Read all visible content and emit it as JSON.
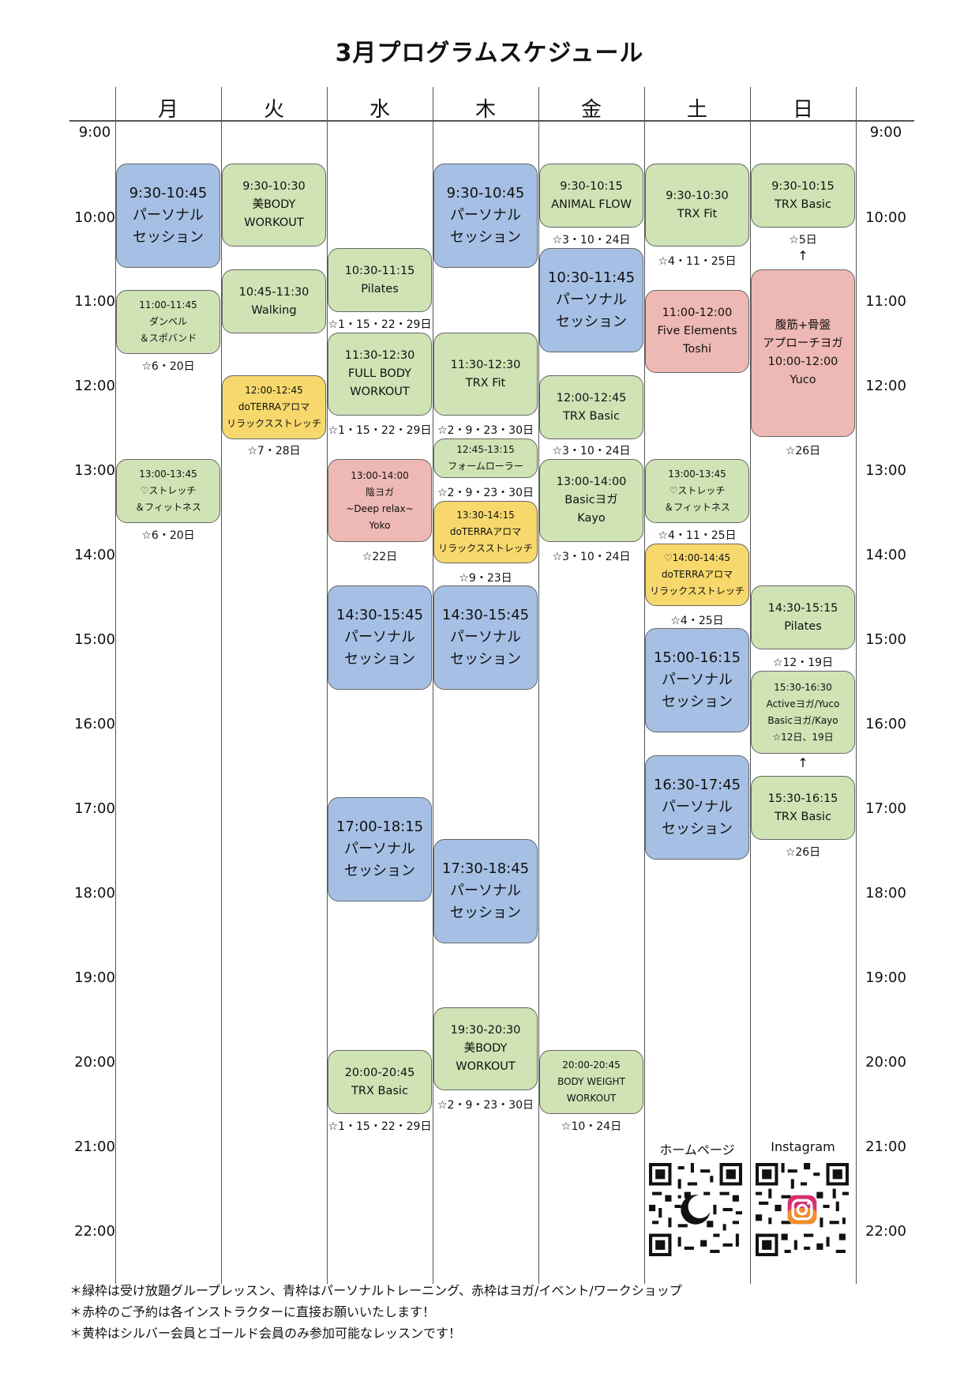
{
  "title": "3月プログラムスケジュール",
  "days": [
    "月",
    "火",
    "水",
    "木",
    "金",
    "土",
    "日"
  ],
  "times": [
    "9:00",
    "10:00",
    "11:00",
    "12:00",
    "13:00",
    "14:00",
    "15:00",
    "16:00",
    "17:00",
    "18:00",
    "19:00",
    "20:00",
    "21:00",
    "22:00"
  ],
  "colors": {
    "green": "#cfe3b5",
    "blue": "#a6c0e5",
    "red": "#eeb8b4",
    "yellow": "#f6d86c"
  },
  "events": [
    {
      "id": "mon-personal-0930",
      "day": "月",
      "color": "blue",
      "text": "9:30-10:45\nパーソナル\nセッション"
    },
    {
      "id": "mon-dumbbell",
      "day": "月",
      "color": "green",
      "text": "11:00-11:45\nダンベル\n＆スポバンド"
    },
    {
      "id": "mon-stretch",
      "day": "月",
      "color": "green",
      "text": "13:00-13:45\n♡ストレッチ\n＆フィットネス"
    },
    {
      "id": "tue-bibody",
      "day": "火",
      "color": "green",
      "text": "9:30-10:30\n美BODY\nWORKOUT"
    },
    {
      "id": "tue-walking",
      "day": "火",
      "color": "green",
      "text": "10:45-11:30\nWalking"
    },
    {
      "id": "tue-doterra",
      "day": "火",
      "color": "yellow",
      "text": "12:00-12:45\ndoTERRAアロマ\nリラックスストレッチ"
    },
    {
      "id": "wed-pilates",
      "day": "水",
      "color": "green",
      "text": "10:30-11:15\nPilates"
    },
    {
      "id": "wed-fullbody",
      "day": "水",
      "color": "green",
      "text": "11:30-12:30\nFULL BODY\nWORKOUT"
    },
    {
      "id": "wed-inyoga",
      "day": "水",
      "color": "red",
      "text": "13:00-14:00\n陰ヨガ\n~Deep relax~\nYoko"
    },
    {
      "id": "wed-personal-1430",
      "day": "水",
      "color": "blue",
      "text": "14:30-15:45\nパーソナル\nセッション"
    },
    {
      "id": "wed-personal-1700",
      "day": "水",
      "color": "blue",
      "text": "17:00-18:15\nパーソナル\nセッション"
    },
    {
      "id": "wed-trx",
      "day": "水",
      "color": "green",
      "text": "20:00-20:45\nTRX Basic"
    },
    {
      "id": "thu-personal-0930",
      "day": "木",
      "color": "blue",
      "text": "9:30-10:45\nパーソナル\nセッション"
    },
    {
      "id": "thu-trxfit",
      "day": "木",
      "color": "green",
      "text": "11:30-12:30\nTRX Fit"
    },
    {
      "id": "thu-foamroller",
      "day": "木",
      "color": "green",
      "text": "12:45-13:15\nフォームローラー"
    },
    {
      "id": "thu-doterra",
      "day": "木",
      "color": "yellow",
      "text": "13:30-14:15\ndoTERRAアロマ\nリラックスストレッチ"
    },
    {
      "id": "thu-personal-1430",
      "day": "木",
      "color": "blue",
      "text": "14:30-15:45\nパーソナル\nセッション"
    },
    {
      "id": "thu-personal-1730",
      "day": "木",
      "color": "blue",
      "text": "17:30-18:45\nパーソナル\nセッション"
    },
    {
      "id": "thu-bibody",
      "day": "木",
      "color": "green",
      "text": "19:30-20:30\n美BODY\nWORKOUT"
    },
    {
      "id": "fri-animalflow",
      "day": "金",
      "color": "green",
      "text": "9:30-10:15\nANIMAL FLOW"
    },
    {
      "id": "fri-personal-1030",
      "day": "金",
      "color": "blue",
      "text": "10:30-11:45\nパーソナル\nセッション"
    },
    {
      "id": "fri-trxbasic",
      "day": "金",
      "color": "green",
      "text": "12:00-12:45\nTRX Basic"
    },
    {
      "id": "fri-basicyoga",
      "day": "金",
      "color": "green",
      "text": "13:00-14:00\nBasicヨガ\nKayo"
    },
    {
      "id": "fri-bodyweight",
      "day": "金",
      "color": "green",
      "text": "20:00-20:45\nBODY WEIGHT\nWORKOUT"
    },
    {
      "id": "sat-trxfit",
      "day": "土",
      "color": "green",
      "text": "9:30-10:30\nTRX Fit"
    },
    {
      "id": "sat-fiveelements",
      "day": "土",
      "color": "red",
      "text": "11:00-12:00\nFive Elements\nToshi"
    },
    {
      "id": "sat-stretch",
      "day": "土",
      "color": "green",
      "text": "13:00-13:45\n♡ストレッチ\n＆フィットネス"
    },
    {
      "id": "sat-doterra",
      "day": "土",
      "color": "yellow",
      "text": "♡14:00-14:45\ndoTERRAアロマ\nリラックスストレッチ"
    },
    {
      "id": "sat-personal-1500",
      "day": "土",
      "color": "blue",
      "text": "15:00-16:15\nパーソナル\nセッション"
    },
    {
      "id": "sat-personal-1630",
      "day": "土",
      "color": "blue",
      "text": "16:30-17:45\nパーソナル\nセッション"
    },
    {
      "id": "sun-trxbasic",
      "day": "日",
      "color": "green",
      "text": "9:30-10:15\nTRX Basic"
    },
    {
      "id": "sun-yoga",
      "day": "日",
      "color": "red",
      "text": "腹筋+骨盤\nアプローチヨガ\n10:00-12:00\nYuco"
    },
    {
      "id": "sun-pilates",
      "day": "日",
      "color": "green",
      "text": "14:30-15:15\nPilates"
    },
    {
      "id": "sun-activeyoga",
      "day": "日",
      "color": "green",
      "text": "15:30-16:30\nActiveヨガ/Yuco\nBasicヨガ/Kayo\n☆12日、19日"
    },
    {
      "id": "sun-trxbasic2",
      "day": "日",
      "color": "green",
      "text": "15:30-16:15\nTRX Basic"
    }
  ],
  "notes": [
    {
      "id": "mon-1",
      "day": "月",
      "text": "☆6・20日"
    },
    {
      "id": "mon-2",
      "day": "月",
      "text": "☆6・20日"
    },
    {
      "id": "tue-1",
      "day": "火",
      "text": "☆7・28日"
    },
    {
      "id": "wed-1",
      "day": "水",
      "text": "☆1・15・22・29日"
    },
    {
      "id": "wed-2",
      "day": "水",
      "text": "☆1・15・22・29日"
    },
    {
      "id": "wed-3",
      "day": "水",
      "text": "☆22日"
    },
    {
      "id": "wed-4",
      "day": "水",
      "text": "☆1・15・22・29日"
    },
    {
      "id": "thu-1",
      "day": "木",
      "text": "☆2・9・23・30日"
    },
    {
      "id": "thu-2",
      "day": "木",
      "text": "☆2・9・23・30日"
    },
    {
      "id": "thu-3",
      "day": "木",
      "text": "☆9・23日"
    },
    {
      "id": "thu-4",
      "day": "木",
      "text": "☆2・9・23・30日"
    },
    {
      "id": "fri-1",
      "day": "金",
      "text": "☆3・10・24日"
    },
    {
      "id": "fri-2",
      "day": "金",
      "text": "☆3・10・24日"
    },
    {
      "id": "fri-3",
      "day": "金",
      "text": "☆3・10・24日"
    },
    {
      "id": "fri-4",
      "day": "金",
      "text": "☆10・24日"
    },
    {
      "id": "sat-1",
      "day": "土",
      "text": "☆4・11・25日"
    },
    {
      "id": "sat-2",
      "day": "土",
      "text": "☆4・11・25日"
    },
    {
      "id": "sat-3",
      "day": "土",
      "text": "☆4・25日"
    },
    {
      "id": "sun-1",
      "day": "日",
      "text": "☆5日"
    },
    {
      "id": "sun-2",
      "day": "日",
      "text": "☆26日"
    },
    {
      "id": "sun-3",
      "day": "日",
      "text": "☆12・19日"
    },
    {
      "id": "sun-4",
      "day": "日",
      "text": "☆26日"
    }
  ],
  "arrows": [
    "↑",
    "↑"
  ],
  "links": {
    "homepage": "ホームページ",
    "instagram": "Instagram"
  },
  "footnotes": [
    "＊緑枠は受け放題グループレッスン、青枠はパーソナルトレーニング、赤枠はヨガ/イベント/ワークショップ",
    "＊赤枠のご予約は各インストラクターに直接お願いいたします！",
    "＊黄枠はシルバー会員とゴールド会員のみ参加可能なレッスンです！"
  ]
}
